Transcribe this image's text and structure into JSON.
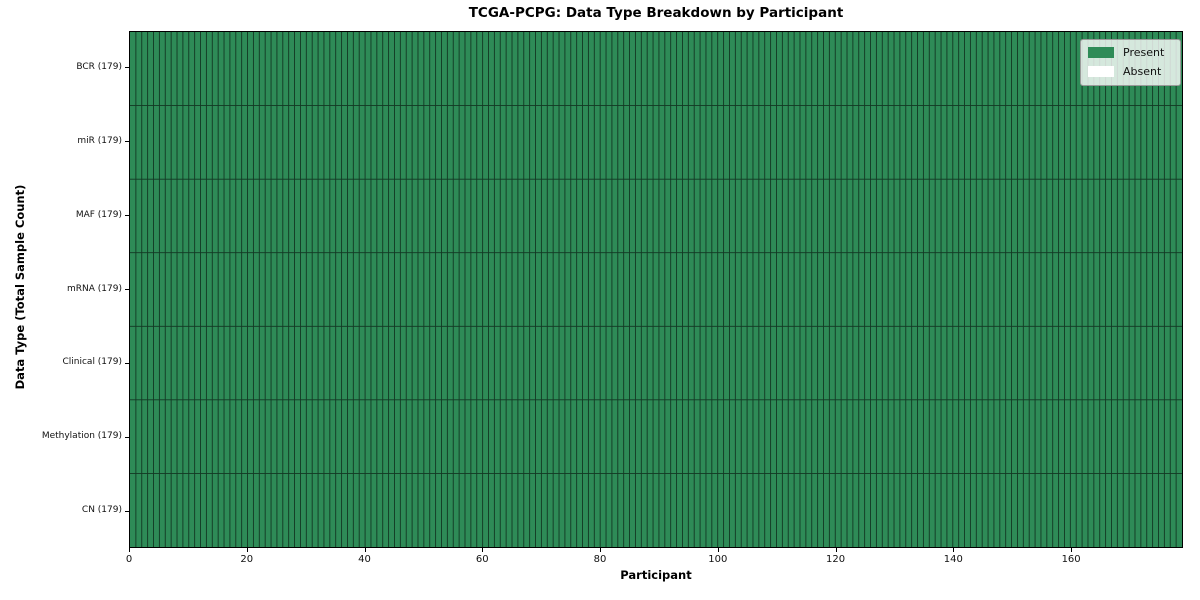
{
  "chart_data": {
    "type": "heatmap",
    "title": "TCGA-PCPG: Data Type Breakdown by Participant",
    "xlabel": "Participant",
    "ylabel": "Data Type (Total Sample Count)",
    "n_participants": 179,
    "xlim": [
      0,
      179
    ],
    "x_ticks": [
      0,
      20,
      40,
      60,
      80,
      100,
      120,
      140,
      160
    ],
    "rows": [
      {
        "label": "BCR (179)",
        "data_type": "BCR",
        "total_samples": 179,
        "present": 179,
        "absent": 0
      },
      {
        "label": "miR (179)",
        "data_type": "miR",
        "total_samples": 179,
        "present": 179,
        "absent": 0
      },
      {
        "label": "MAF (179)",
        "data_type": "MAF",
        "total_samples": 179,
        "present": 179,
        "absent": 0
      },
      {
        "label": "mRNA (179)",
        "data_type": "mRNA",
        "total_samples": 179,
        "present": 179,
        "absent": 0
      },
      {
        "label": "Clinical (179)",
        "data_type": "Clinical",
        "total_samples": 179,
        "present": 179,
        "absent": 0
      },
      {
        "label": "Methylation (179)",
        "data_type": "Methylation",
        "total_samples": 179,
        "present": 179,
        "absent": 0
      },
      {
        "label": "CN (179)",
        "data_type": "CN",
        "total_samples": 179,
        "present": 179,
        "absent": 0
      }
    ],
    "all_present": true,
    "legend": {
      "position": "upper right",
      "entries": [
        {
          "label": "Present",
          "color": "#2e8b57"
        },
        {
          "label": "Absent",
          "color": "#ffffff"
        }
      ]
    },
    "colors": {
      "present": "#2e8b57",
      "absent": "#ffffff",
      "cell_edge": "#000000",
      "spine": "#000000",
      "background": "#ffffff"
    },
    "grid": "per-cell edges"
  }
}
